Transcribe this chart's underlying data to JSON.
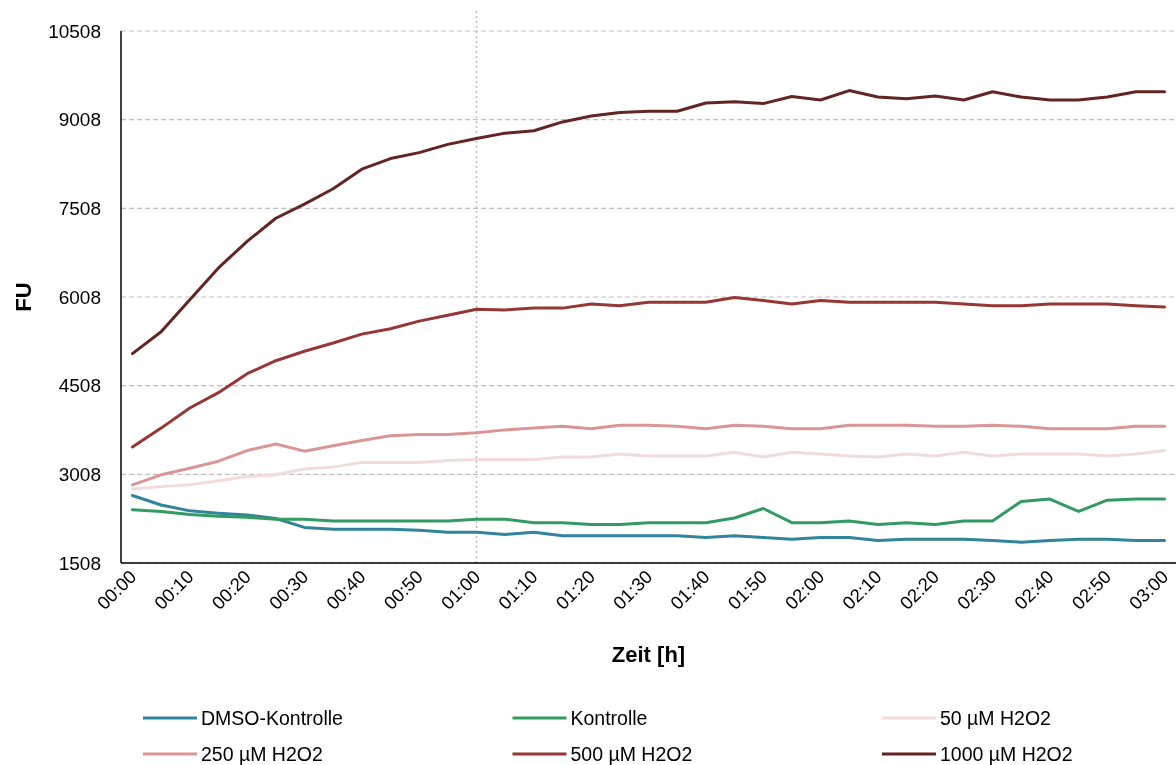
{
  "chart_data": {
    "type": "line",
    "xlabel": "Zeit [h]",
    "ylabel": "FU",
    "categories": [
      "00:00",
      null,
      "00:10",
      null,
      "00:20",
      null,
      "00:30",
      null,
      "00:40",
      null,
      "00:50",
      null,
      "01:00",
      null,
      "01:10",
      null,
      "01:20",
      null,
      "01:30",
      null,
      "01:40",
      null,
      "01:50",
      null,
      "02:00",
      null,
      "02:10",
      null,
      "02:20",
      null,
      "02:30",
      null,
      "02:40",
      null,
      "02:50",
      null,
      "03:00"
    ],
    "ylim": [
      1508,
      10508
    ],
    "yticks": [
      1508,
      3008,
      4508,
      6008,
      7508,
      9008,
      10508
    ],
    "grid": "y",
    "legend": "bottom",
    "line_style": "solid",
    "ref_lines": [
      {
        "axis": "x",
        "value": "01:00",
        "color": "#bfbfbf",
        "line_style": "dotted"
      }
    ],
    "series": [
      {
        "name": "DMSO-Kontrolle",
        "color": "#31849b",
        "values": [
          2650,
          2490,
          2390,
          2350,
          2320,
          2260,
          2110,
          2080,
          2080,
          2080,
          2060,
          2030,
          2030,
          1990,
          2030,
          1970,
          1970,
          1970,
          1970,
          1970,
          1940,
          1970,
          1940,
          1910,
          1940,
          1940,
          1890,
          1910,
          1910,
          1910,
          1890,
          1860,
          1890,
          1910,
          1910,
          1890,
          1890
        ]
      },
      {
        "name": "Kontrolle",
        "color": "#319b62",
        "values": [
          2410,
          2380,
          2330,
          2300,
          2280,
          2250,
          2250,
          2220,
          2220,
          2220,
          2220,
          2220,
          2250,
          2250,
          2190,
          2190,
          2160,
          2160,
          2190,
          2190,
          2190,
          2270,
          2430,
          2190,
          2190,
          2220,
          2160,
          2190,
          2160,
          2220,
          2220,
          2550,
          2590,
          2380,
          2570,
          2590,
          2590
        ]
      },
      {
        "name": "50 µM H2O2",
        "color": "#f2dcdb",
        "values": [
          2760,
          2800,
          2830,
          2900,
          2970,
          3000,
          3100,
          3130,
          3210,
          3210,
          3210,
          3240,
          3260,
          3260,
          3260,
          3300,
          3300,
          3350,
          3320,
          3320,
          3320,
          3380,
          3300,
          3380,
          3350,
          3320,
          3300,
          3350,
          3320,
          3380,
          3320,
          3350,
          3350,
          3350,
          3320,
          3350,
          3410
        ]
      },
      {
        "name": "250 µM H2O2",
        "color": "#da9694",
        "values": [
          2830,
          3000,
          3110,
          3230,
          3410,
          3520,
          3400,
          3490,
          3580,
          3660,
          3680,
          3680,
          3710,
          3760,
          3790,
          3820,
          3780,
          3840,
          3840,
          3820,
          3780,
          3840,
          3820,
          3780,
          3780,
          3840,
          3840,
          3840,
          3820,
          3820,
          3840,
          3820,
          3780,
          3780,
          3780,
          3820,
          3820
        ]
      },
      {
        "name": "500 µM H2O2",
        "color": "#953735",
        "values": [
          3470,
          3790,
          4130,
          4390,
          4710,
          4930,
          5090,
          5230,
          5380,
          5470,
          5600,
          5700,
          5800,
          5790,
          5820,
          5820,
          5890,
          5860,
          5920,
          5920,
          5920,
          6000,
          5950,
          5890,
          5950,
          5920,
          5920,
          5920,
          5920,
          5890,
          5860,
          5860,
          5890,
          5890,
          5890,
          5860,
          5840
        ]
      },
      {
        "name": "1000 µM H2O2",
        "color": "#632523",
        "values": [
          5050,
          5420,
          5960,
          6500,
          6950,
          7340,
          7580,
          7840,
          8170,
          8350,
          8450,
          8590,
          8690,
          8780,
          8820,
          8970,
          9070,
          9130,
          9150,
          9150,
          9290,
          9310,
          9280,
          9400,
          9340,
          9500,
          9390,
          9360,
          9410,
          9340,
          9480,
          9390,
          9340,
          9340,
          9390,
          9480,
          9480
        ]
      }
    ]
  }
}
